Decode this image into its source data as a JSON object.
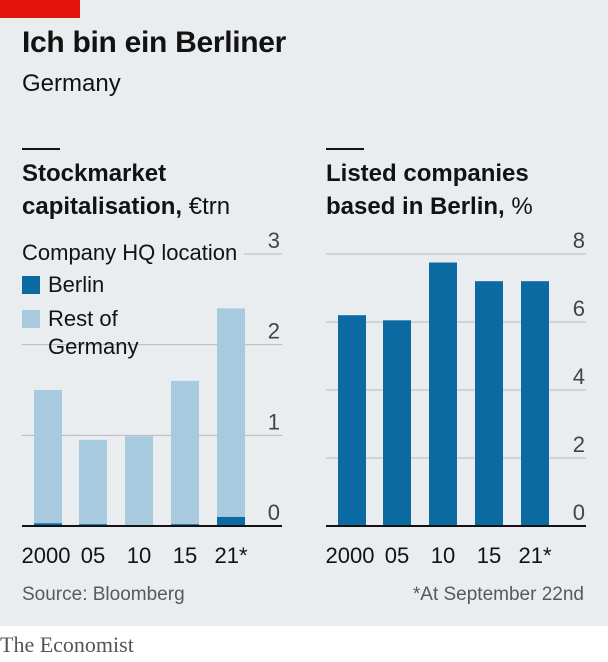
{
  "header": {
    "title": "Ich bin ein Berliner",
    "subtitle": "Germany"
  },
  "chart_data": [
    {
      "type": "bar",
      "title_bold": "Stockmarket capitalisation,",
      "title_unit": "€trn",
      "legend_title": "Company HQ location",
      "categories": [
        "2000",
        "05",
        "10",
        "15",
        "21*"
      ],
      "series": [
        {
          "name": "Berlin",
          "values": [
            0.03,
            0.02,
            0.0,
            0.02,
            0.1
          ],
          "color": "#0b6aa2"
        },
        {
          "name": "Rest of Germany",
          "values": [
            1.47,
            0.93,
            0.99,
            1.58,
            2.3
          ],
          "color": "#a7cade"
        }
      ],
      "stacked": true,
      "ylim": [
        0,
        3
      ],
      "yticks": [
        "0",
        "1",
        "2",
        "3"
      ],
      "legend_position": "top-left"
    },
    {
      "type": "bar",
      "title_bold": "Listed companies based in Berlin,",
      "title_unit": "%",
      "categories": [
        "2000",
        "05",
        "10",
        "15",
        "21*"
      ],
      "values": [
        6.2,
        6.05,
        7.75,
        7.2,
        7.2
      ],
      "color": "#0b6aa2",
      "ylim": [
        0,
        8
      ],
      "yticks": [
        "0",
        "2",
        "4",
        "6",
        "8"
      ]
    }
  ],
  "footer": {
    "source": "Source: Bloomberg",
    "footnote": "*At September 22nd",
    "brand": "The Economist"
  }
}
